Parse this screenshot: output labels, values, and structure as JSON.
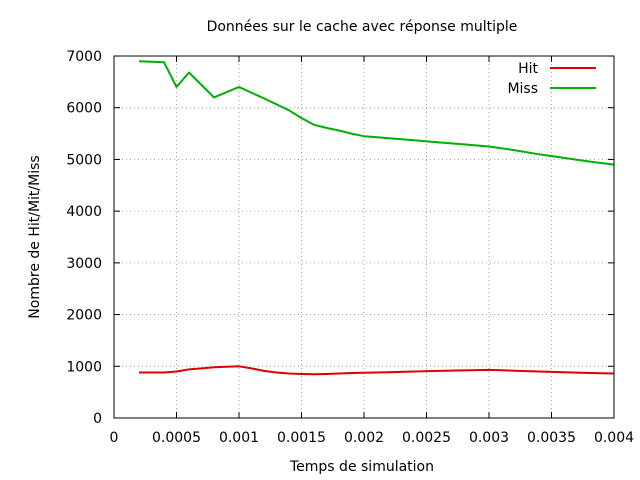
{
  "chart_data": {
    "type": "line",
    "title": "Données sur le cache avec réponse multiple",
    "xlabel": "Temps de simulation",
    "ylabel": "Nombre de Hit/Mit/Miss",
    "xlim": [
      0,
      0.004
    ],
    "ylim": [
      0,
      7000
    ],
    "x_ticks": [
      0,
      0.0005,
      0.001,
      0.0015,
      0.002,
      0.0025,
      0.003,
      0.0035,
      0.004
    ],
    "x_tick_labels": [
      "0",
      "0.0005",
      "0.001",
      "0.0015",
      "0.002",
      "0.0025",
      "0.003",
      "0.0035",
      "0.004"
    ],
    "y_ticks": [
      0,
      1000,
      2000,
      3000,
      4000,
      5000,
      6000,
      7000
    ],
    "y_tick_labels": [
      "0",
      "1000",
      "2000",
      "3000",
      "4000",
      "5000",
      "6000",
      "7000"
    ],
    "grid": true,
    "legend_position": "top-right",
    "series": [
      {
        "name": "Hit",
        "color": "#e00000",
        "points": [
          [
            0.0002,
            880
          ],
          [
            0.0003,
            880
          ],
          [
            0.0004,
            880
          ],
          [
            0.0005,
            900
          ],
          [
            0.0006,
            940
          ],
          [
            0.0007,
            960
          ],
          [
            0.0008,
            980
          ],
          [
            0.0009,
            990
          ],
          [
            0.001,
            1000
          ],
          [
            0.0011,
            960
          ],
          [
            0.0012,
            910
          ],
          [
            0.0013,
            880
          ],
          [
            0.0014,
            860
          ],
          [
            0.0015,
            850
          ],
          [
            0.0016,
            845
          ],
          [
            0.0017,
            850
          ],
          [
            0.0018,
            860
          ],
          [
            0.0019,
            870
          ],
          [
            0.002,
            875
          ],
          [
            0.0022,
            885
          ],
          [
            0.0024,
            900
          ],
          [
            0.0026,
            910
          ],
          [
            0.0028,
            920
          ],
          [
            0.003,
            930
          ],
          [
            0.0031,
            925
          ],
          [
            0.0032,
            915
          ],
          [
            0.0034,
            900
          ],
          [
            0.0036,
            885
          ],
          [
            0.0038,
            870
          ],
          [
            0.004,
            860
          ]
        ]
      },
      {
        "name": "Miss",
        "color": "#00b000",
        "points": [
          [
            0.0002,
            6900
          ],
          [
            0.0003,
            6890
          ],
          [
            0.0004,
            6880
          ],
          [
            0.0005,
            6400
          ],
          [
            0.0006,
            6680
          ],
          [
            0.0007,
            6440
          ],
          [
            0.0008,
            6200
          ],
          [
            0.0009,
            6300
          ],
          [
            0.001,
            6400
          ],
          [
            0.0012,
            6180
          ],
          [
            0.0014,
            5950
          ],
          [
            0.0015,
            5800
          ],
          [
            0.0016,
            5670
          ],
          [
            0.0017,
            5610
          ],
          [
            0.0018,
            5560
          ],
          [
            0.0019,
            5500
          ],
          [
            0.002,
            5450
          ],
          [
            0.0022,
            5410
          ],
          [
            0.0024,
            5370
          ],
          [
            0.0026,
            5330
          ],
          [
            0.0028,
            5290
          ],
          [
            0.003,
            5250
          ],
          [
            0.0032,
            5180
          ],
          [
            0.0034,
            5100
          ],
          [
            0.0036,
            5030
          ],
          [
            0.0038,
            4960
          ],
          [
            0.004,
            4900
          ]
        ]
      }
    ]
  }
}
